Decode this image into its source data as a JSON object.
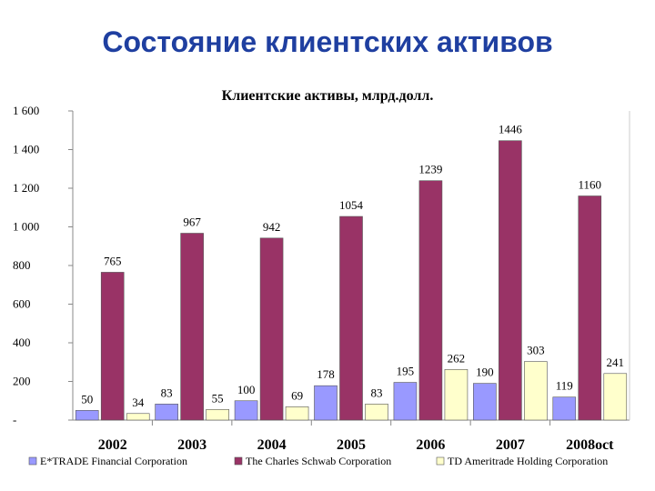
{
  "slide": {
    "title": "Состояние клиентских активов"
  },
  "colors": {
    "title": "#1f3fa0"
  },
  "chart_data": {
    "type": "bar",
    "title": "Клиентские активы, млрд.долл.",
    "categories": [
      "2002",
      "2003",
      "2004",
      "2005",
      "2006",
      "2007",
      "2008oct"
    ],
    "yticks": [
      "-",
      "200",
      "400",
      "600",
      "800",
      "1 000",
      "1 200",
      "1 400",
      "1 600"
    ],
    "ylim": [
      0,
      1600
    ],
    "grid": false,
    "legend_position": "bottom",
    "series": [
      {
        "name": "E*TRADE Financial Corporation",
        "color": "#9999ff",
        "values": [
          50,
          83,
          100,
          178,
          195,
          190,
          119
        ],
        "labels": [
          "50",
          "83",
          "100",
          "178",
          "195",
          "190",
          "119"
        ]
      },
      {
        "name": "The Charles Schwab Corporation",
        "color": "#993366",
        "values": [
          765,
          967,
          942,
          1054,
          1239,
          1446,
          1160
        ],
        "labels": [
          "765",
          "967",
          "942",
          "1054",
          "1239",
          "1446",
          "1160"
        ]
      },
      {
        "name": "TD Ameritrade Holding Corporation",
        "color": "#ffffcc",
        "values": [
          34,
          55,
          69,
          83,
          262,
          303,
          241
        ],
        "labels": [
          "34",
          "55",
          "69",
          "83",
          "262",
          "303",
          "241"
        ]
      }
    ]
  }
}
